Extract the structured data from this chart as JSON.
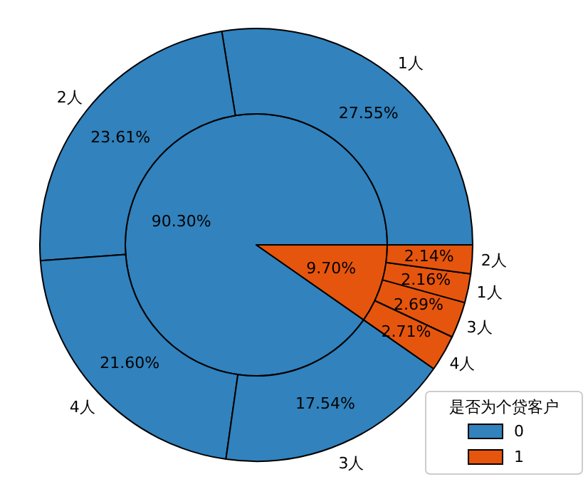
{
  "chart_data": [
    {
      "type": "pie",
      "categories": [
        "0",
        "1"
      ],
      "values": [
        90.3,
        9.7
      ],
      "colors": [
        "#3182bd",
        "#e6550d"
      ],
      "value_labels": [
        "90.30%",
        "9.70%"
      ],
      "legend": "bottom right",
      "legend_title": "是否为个贷客户"
    },
    {
      "type": "donut",
      "categories": [
        "1人",
        "2人",
        "4人",
        "3人",
        "4人",
        "3人",
        "1人",
        "2人"
      ],
      "values": [
        27.55,
        23.61,
        21.6,
        17.54,
        2.71,
        2.69,
        2.16,
        2.14
      ],
      "colors": [
        "#3182bd",
        "#3182bd",
        "#3182bd",
        "#3182bd",
        "#e6550d",
        "#e6550d",
        "#e6550d",
        "#e6550d"
      ],
      "value_labels": [
        "27.55%",
        "23.61%",
        "21.60%",
        "17.54%",
        "2.71%",
        "2.69%",
        "2.16%",
        "2.14%"
      ]
    }
  ]
}
